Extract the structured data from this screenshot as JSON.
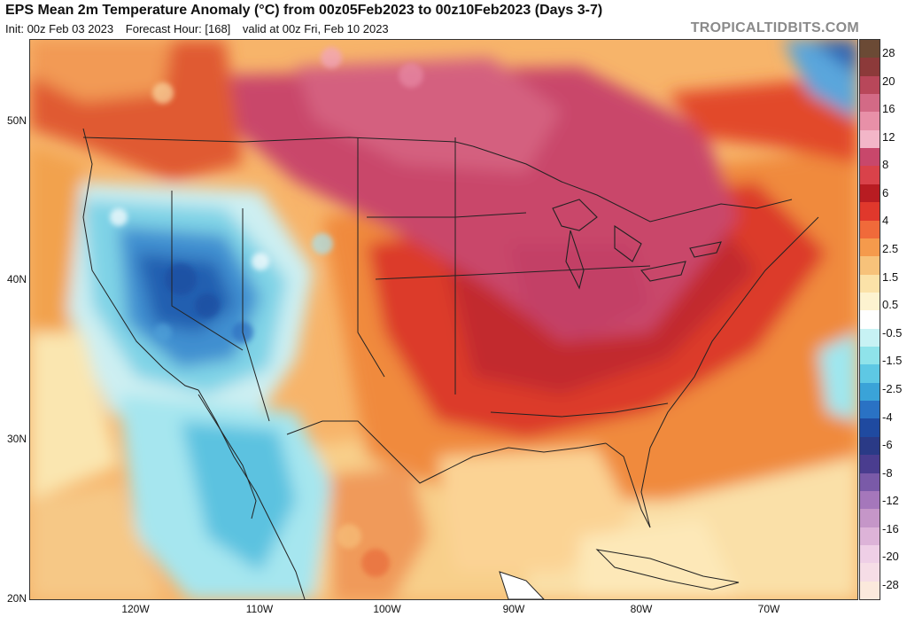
{
  "header": {
    "title": "EPS Mean 2m Temperature Anomaly (°C) from 00z05Feb2023 to 00z10Feb2023 (Days 3-7)",
    "init": "Init: 00z Feb 03 2023",
    "forecast_hour": "Forecast Hour: [168]",
    "valid": "valid at 00z Fri, Feb 10 2023",
    "watermark": "TROPICALTIDBITS.COM"
  },
  "map": {
    "lat_labels": [
      "50N",
      "40N",
      "30N",
      "20N"
    ],
    "lon_labels": [
      "120W",
      "110W",
      "100W",
      "90W",
      "80W",
      "70W"
    ]
  },
  "colorbar": {
    "labels": [
      "28",
      "20",
      "16",
      "12",
      "8",
      "6",
      "4",
      "2.5",
      "1.5",
      "0.5",
      "-0.5",
      "-1.5",
      "-2.5",
      "-4",
      "-6",
      "-8",
      "-12",
      "-16",
      "-20",
      "-28"
    ],
    "colors": [
      "#6b4a35",
      "#8c3a3a",
      "#b8475a",
      "#d36a86",
      "#e890a8",
      "#f3b6c8",
      "#c8476b",
      "#d9424a",
      "#b81c22",
      "#e0382c",
      "#f06a3a",
      "#f59a4c",
      "#f7c27a",
      "#fbe2a8",
      "#fdf3d0",
      "#ffffff",
      "#c7f2f4",
      "#8fe3ea",
      "#5ec8e4",
      "#3aa3d8",
      "#2a72c4",
      "#1f4aa0",
      "#2a3a86",
      "#4a3d8f",
      "#7a5aa8",
      "#a577bb",
      "#c596c8",
      "#ddb3d8",
      "#efcfe6",
      "#f6dde6",
      "#fbe9dc"
    ]
  }
}
